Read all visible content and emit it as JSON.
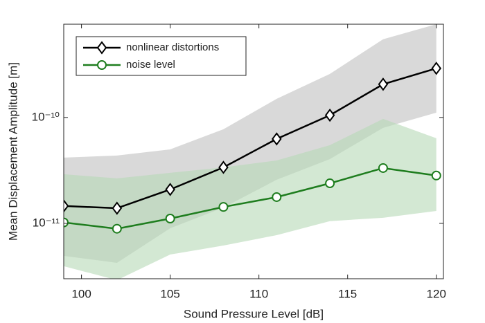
{
  "chart_data": {
    "type": "line",
    "xlabel": "Sound Pressure Level [dB]",
    "ylabel": "Mean Displacement Amplitude [m]",
    "x": [
      99,
      102,
      105,
      108,
      111,
      114,
      117,
      120
    ],
    "xlim": [
      99,
      120.4
    ],
    "xticks": [
      100,
      105,
      110,
      115,
      120
    ],
    "ylim": [
      3e-12,
      7.6e-10
    ],
    "ylog": true,
    "yticks": [
      {
        "value": 1e-11,
        "label": "10⁻¹¹"
      },
      {
        "value": 1e-10,
        "label": "10⁻¹⁰"
      }
    ],
    "legend": "upper left",
    "series": [
      {
        "name": "nonlinear distortions",
        "color": "#000000",
        "band_color": "#bfbfbf",
        "marker": "diamond",
        "values": [
          1.46e-11,
          1.39e-11,
          2.09e-11,
          3.38e-11,
          6.27e-11,
          1.05e-10,
          2.06e-10,
          2.91e-10
        ],
        "upper": [
          4.18e-11,
          4.37e-11,
          5e-11,
          7.74e-11,
          1.5e-10,
          2.58e-10,
          5.48e-10,
          7.6e-10
        ],
        "lower": [
          4.93e-12,
          4.24e-12,
          9e-12,
          1.41e-11,
          2.58e-11,
          4.05e-11,
          7.98e-11,
          1.11e-10
        ]
      },
      {
        "name": "noise level",
        "color": "#1e7d1e",
        "band_color": "#b5d9b5",
        "marker": "circle",
        "values": [
          1.02e-11,
          8.9e-12,
          1.11e-11,
          1.43e-11,
          1.77e-11,
          2.39e-11,
          3.33e-11,
          2.83e-11
        ],
        "upper": [
          2.91e-11,
          2.66e-11,
          3e-11,
          3.38e-11,
          3.93e-11,
          5.48e-11,
          9.7e-11,
          6.37e-11
        ],
        "lower": [
          3.94e-12,
          2.91e-12,
          5.08e-12,
          6.18e-12,
          7.74e-12,
          1.05e-11,
          1.13e-11,
          1.31e-11
        ]
      }
    ]
  }
}
